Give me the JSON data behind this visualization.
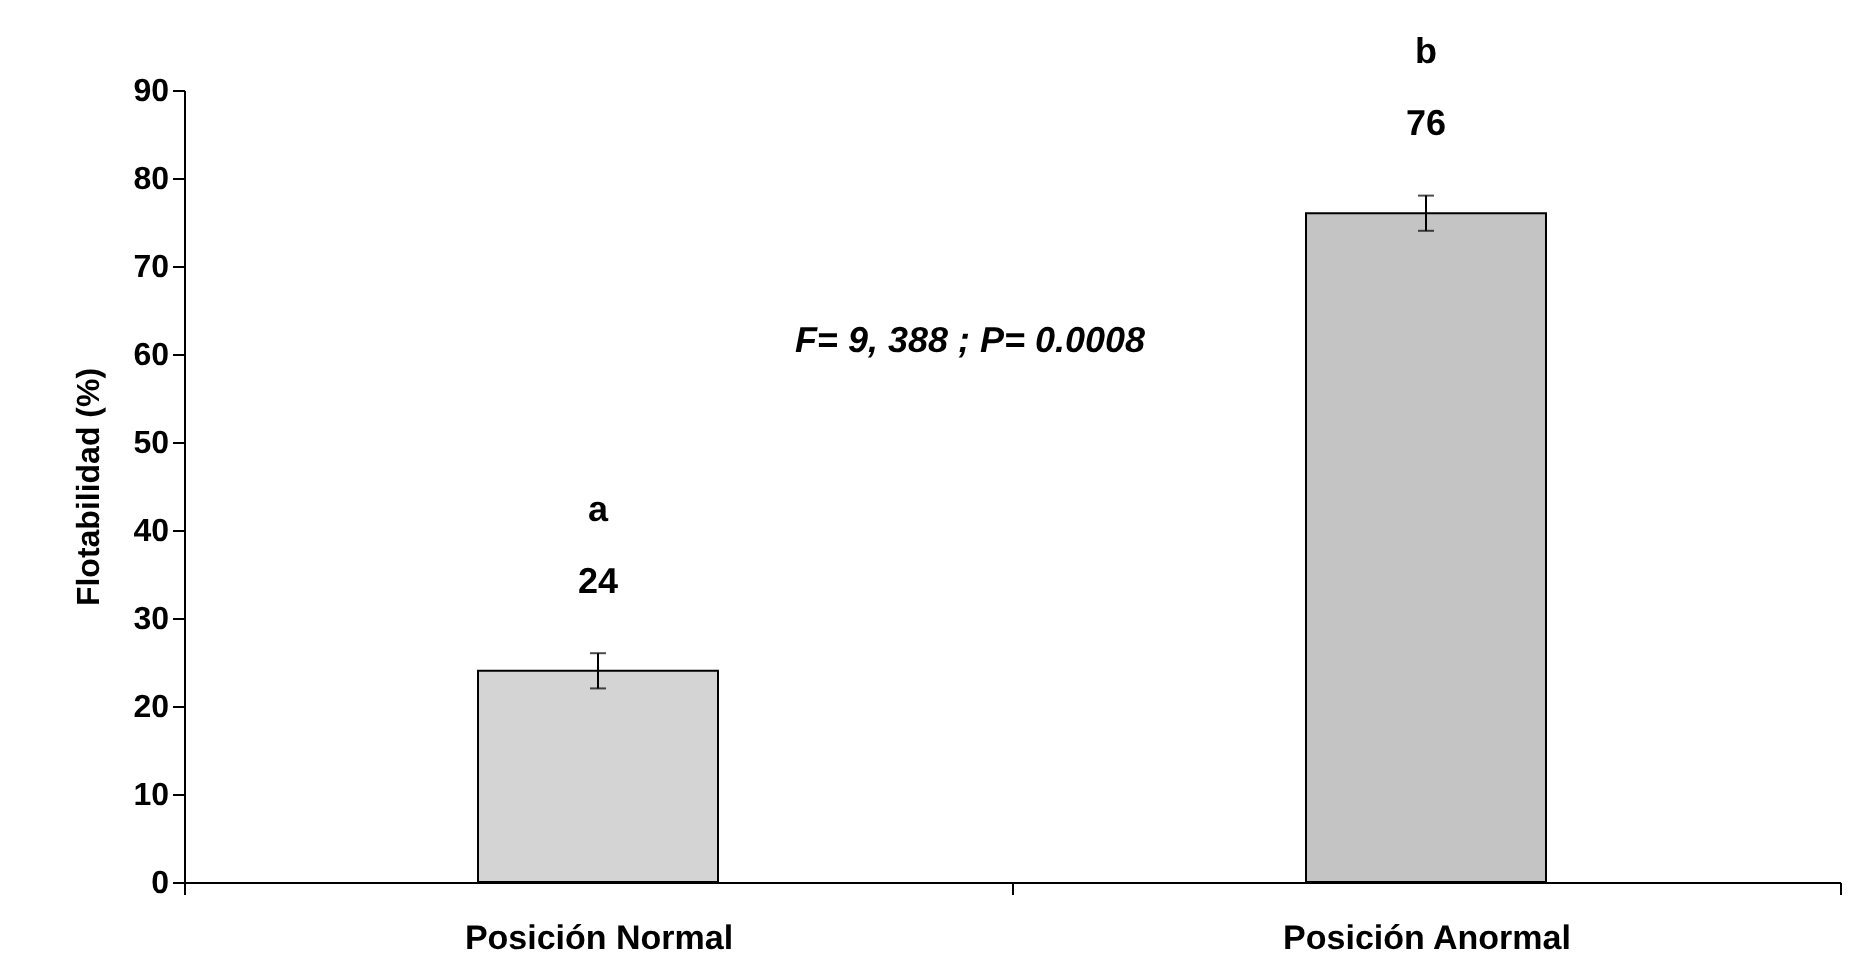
{
  "chart_data": {
    "type": "bar",
    "ylabel": "Flotabilidad (%)",
    "categories": [
      "Posición Normal",
      "Posición Anormal"
    ],
    "values": [
      24,
      76
    ],
    "errors": [
      2,
      2
    ],
    "colors": [
      "#d4d4d4",
      "#c4c4c4"
    ],
    "data_labels": true,
    "ylim": [
      0,
      90
    ],
    "yticks": [
      0,
      10,
      20,
      30,
      40,
      50,
      60,
      70,
      80,
      90
    ],
    "grid": false,
    "legend": false,
    "annotations": [
      "a",
      "b",
      "F= 9, 388 ;  P= 0.0008"
    ]
  }
}
